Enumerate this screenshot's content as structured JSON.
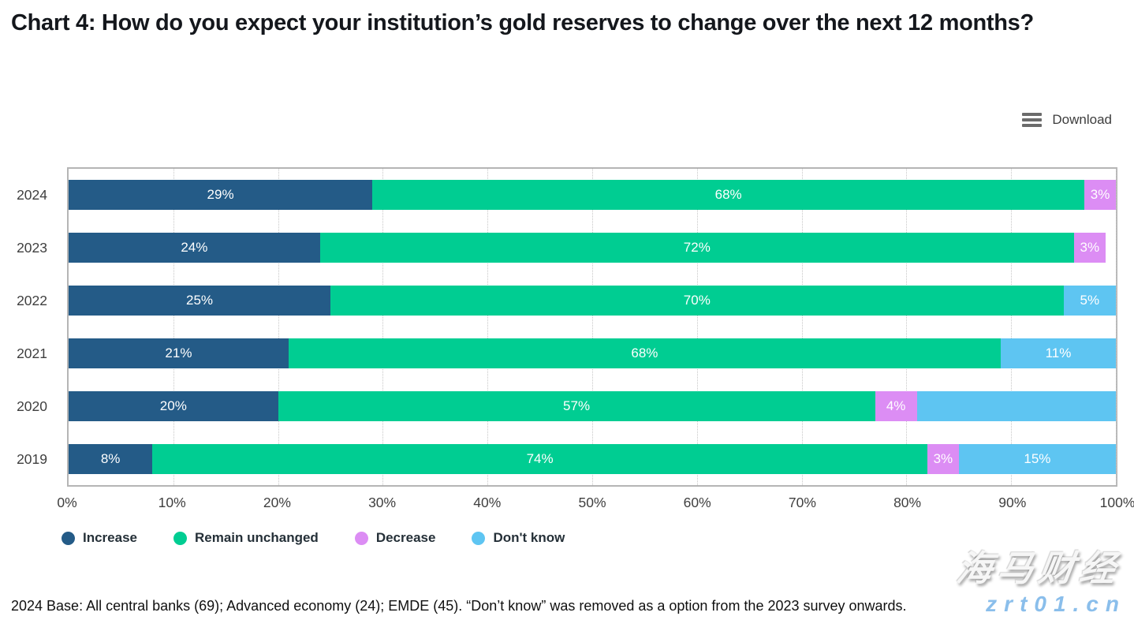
{
  "page": {
    "title": "Chart 4: How do you expect your institution’s gold reserves to change over the next 12 months?",
    "download_label": "Download",
    "footnote": "2024 Base: All central banks (69); Advanced economy (24); EMDE (45). “Don’t know” was removed as a option from the 2023 survey onwards.",
    "watermark": {
      "brand": "海马财经",
      "domain": "zrt01.cn"
    }
  },
  "chart_data": {
    "type": "bar",
    "orientation": "horizontal",
    "stacked": true,
    "title": "Chart 4: How do you expect your institution’s gold reserves to change over the next 12 months?",
    "categories": [
      "2024",
      "2023",
      "2022",
      "2021",
      "2020",
      "2019"
    ],
    "series": [
      {
        "name": "Increase",
        "color": "#245b87",
        "values": [
          29,
          24,
          25,
          21,
          20,
          8
        ],
        "labels": [
          "29%",
          "24%",
          "25%",
          "21%",
          "20%",
          "8%"
        ]
      },
      {
        "name": "Remain unchanged",
        "color": "#00cd92",
        "values": [
          68,
          72,
          70,
          68,
          57,
          74
        ],
        "labels": [
          "68%",
          "72%",
          "70%",
          "68%",
          "57%",
          "74%"
        ]
      },
      {
        "name": "Decrease",
        "color": "#dc8df4",
        "values": [
          3,
          3,
          0,
          0,
          4,
          3
        ],
        "labels": [
          "3%",
          "3%",
          "",
          "",
          "4%",
          "3%"
        ]
      },
      {
        "name": "Don't know",
        "color": "#5ec5f2",
        "values": [
          0,
          0,
          5,
          11,
          19,
          15
        ],
        "labels": [
          "",
          "",
          "5%",
          "11%",
          "",
          "15%"
        ]
      }
    ],
    "xlabel": "",
    "ylabel": "",
    "xlim": [
      0,
      100
    ],
    "x_ticks": [
      "0%",
      "10%",
      "20%",
      "30%",
      "40%",
      "50%",
      "60%",
      "70%",
      "80%",
      "90%",
      "100%"
    ],
    "grid": "vertical-dotted",
    "legend_position": "bottom",
    "legend": [
      "Increase",
      "Remain unchanged",
      "Decrease",
      "Don't know"
    ]
  }
}
